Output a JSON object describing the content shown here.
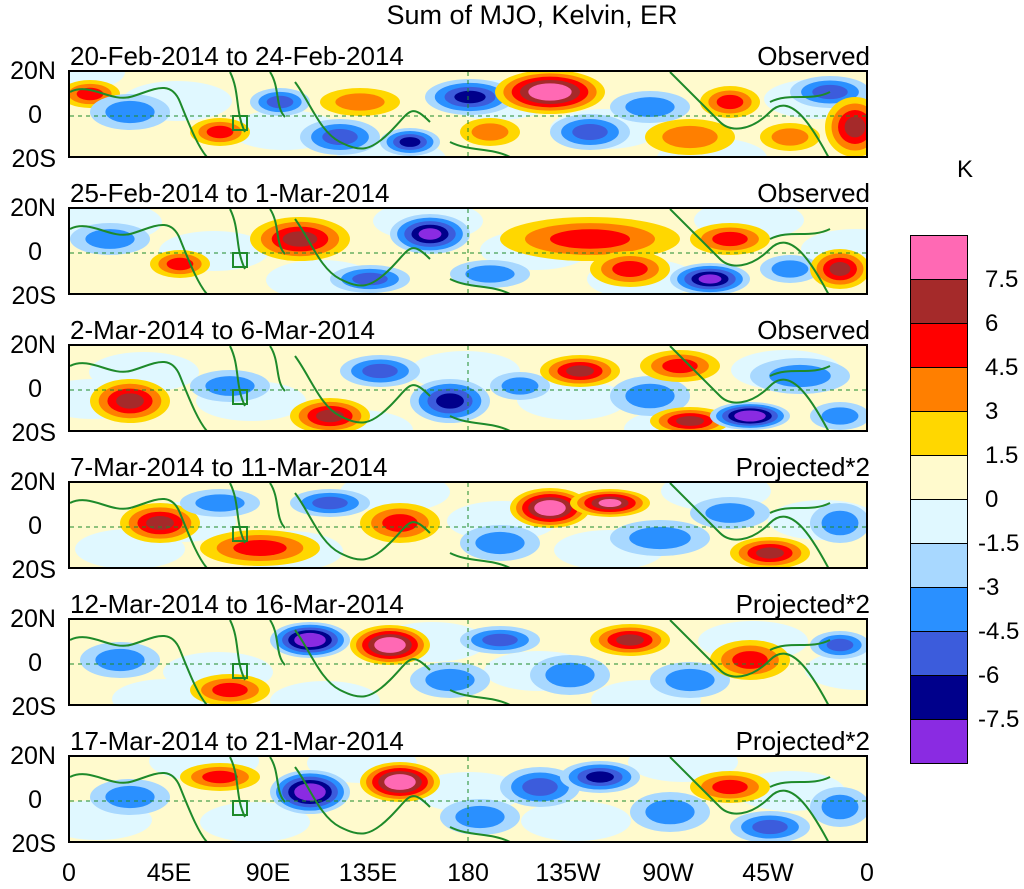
{
  "figure": {
    "title": "Sum of MJO, Kelvin, ER",
    "lat_labels": [
      "20N",
      "0",
      "20S"
    ],
    "lon_labels": [
      "0",
      "45E",
      "90E",
      "135E",
      "180",
      "135W",
      "90W",
      "45W",
      "0"
    ],
    "panels": [
      {
        "date": "20-Feb-2014 to 24-Feb-2014",
        "kind": "Observed"
      },
      {
        "date": "25-Feb-2014 to 1-Mar-2014",
        "kind": "Observed"
      },
      {
        "date": "2-Mar-2014 to 6-Mar-2014",
        "kind": "Observed"
      },
      {
        "date": "7-Mar-2014 to 11-Mar-2014",
        "kind": "Projected*2"
      },
      {
        "date": "12-Mar-2014 to 16-Mar-2014",
        "kind": "Projected*2"
      },
      {
        "date": "17-Mar-2014 to 21-Mar-2014",
        "kind": "Projected*2"
      }
    ]
  },
  "colorbar": {
    "unit": "K",
    "labels": [
      "7.5",
      "6",
      "4.5",
      "3",
      "1.5",
      "0",
      "-1.5",
      "-3",
      "-4.5",
      "-6",
      "-7.5"
    ],
    "colors": [
      "#ff69b4",
      "#a52a2a",
      "#ff0000",
      "#ff7f00",
      "#ffd700",
      "#fffacd",
      "#e0f8ff",
      "#a8d8ff",
      "#2a90ff",
      "#3c5cdc",
      "#00008b",
      "#8a2be2"
    ]
  }
}
